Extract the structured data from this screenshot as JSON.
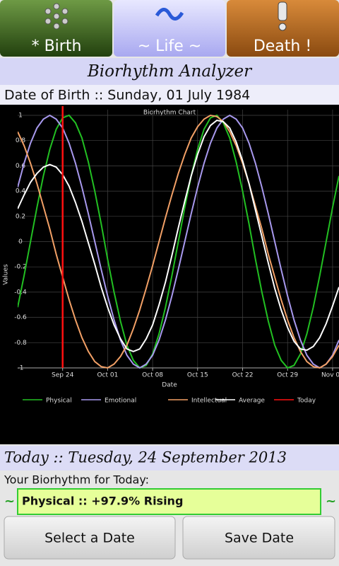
{
  "tabs": [
    "* Birth",
    "~ Life ~",
    "Death !"
  ],
  "header": {
    "title": "Biorhythm Analyzer"
  },
  "date_of_birth": "Date of Birth :: Sunday, 01 July 1984",
  "chart_data": {
    "type": "line",
    "title": "Biorhythm Chart",
    "x_label": "Date",
    "y_label": "Values",
    "x": [
      null,
      null,
      null,
      null,
      null,
      null,
      null,
      "Sep 24",
      null,
      null,
      null,
      null,
      null,
      null,
      "Oct 01",
      null,
      null,
      null,
      null,
      null,
      null,
      "Oct 08",
      null,
      null,
      null,
      null,
      null,
      null,
      "Oct 15",
      null,
      null,
      null,
      null,
      null,
      null,
      "Oct 22",
      null,
      null,
      null,
      null,
      null,
      null,
      "Oct 29",
      null,
      null,
      null,
      null,
      null,
      null,
      "Nov 05",
      null
    ],
    "ylim": [
      -1,
      1
    ],
    "yticks": [
      -1,
      -0.8,
      -0.6,
      -0.4,
      -0.2,
      0,
      0.2,
      0.4,
      0.6,
      0.8,
      1
    ],
    "grid": true,
    "series": [
      {
        "name": "Physical",
        "color": "#22c022",
        "values": [
          -0.52,
          -0.27,
          0,
          0.27,
          0.52,
          0.73,
          0.89,
          0.98,
          1.0,
          0.94,
          0.82,
          0.63,
          0.4,
          0.14,
          -0.14,
          -0.4,
          -0.63,
          -0.82,
          -0.94,
          -1.0,
          -0.98,
          -0.89,
          -0.73,
          -0.52,
          -0.27,
          0,
          0.27,
          0.52,
          0.73,
          0.89,
          0.98,
          1.0,
          0.94,
          0.82,
          0.63,
          0.4,
          0.14,
          -0.14,
          -0.4,
          -0.63,
          -0.82,
          -0.94,
          -1.0,
          -0.98,
          -0.89,
          -0.73,
          -0.52,
          -0.27,
          0,
          0.27,
          0.52
        ]
      },
      {
        "name": "Emotional",
        "color": "#a899ee",
        "values": [
          0.43,
          0.62,
          0.78,
          0.9,
          0.97,
          1,
          0.97,
          0.9,
          0.78,
          0.62,
          0.43,
          0.22,
          0,
          -0.22,
          -0.43,
          -0.62,
          -0.78,
          -0.9,
          -0.97,
          -1,
          -0.97,
          -0.9,
          -0.78,
          -0.62,
          -0.43,
          -0.22,
          0,
          0.22,
          0.43,
          0.62,
          0.78,
          0.9,
          0.97,
          1,
          0.97,
          0.9,
          0.78,
          0.62,
          0.43,
          0.22,
          0,
          -0.22,
          -0.43,
          -0.62,
          -0.78,
          -0.9,
          -0.97,
          -1,
          -0.97,
          -0.9,
          -0.78
        ]
      },
      {
        "name": "Intellectual",
        "color": "#f2a066",
        "values": [
          0.87,
          0.76,
          0.62,
          0.46,
          0.28,
          0.1,
          -0.1,
          -0.28,
          -0.46,
          -0.62,
          -0.76,
          -0.87,
          -0.95,
          -0.99,
          -1.0,
          -0.97,
          -0.91,
          -0.82,
          -0.69,
          -0.54,
          -0.37,
          -0.19,
          0,
          0.19,
          0.37,
          0.54,
          0.69,
          0.82,
          0.91,
          0.97,
          1.0,
          0.99,
          0.95,
          0.87,
          0.76,
          0.62,
          0.46,
          0.28,
          0.1,
          -0.1,
          -0.28,
          -0.46,
          -0.62,
          -0.76,
          -0.87,
          -0.95,
          -0.99,
          -1.0,
          -0.97,
          -0.91,
          -0.82
        ]
      },
      {
        "name": "Average",
        "color": "#ffffff",
        "values": [
          0.26,
          0.37,
          0.47,
          0.54,
          0.59,
          0.61,
          0.59,
          0.53,
          0.44,
          0.31,
          0.16,
          -0.01,
          -0.18,
          -0.36,
          -0.52,
          -0.66,
          -0.77,
          -0.85,
          -0.87,
          -0.85,
          -0.77,
          -0.66,
          -0.5,
          -0.32,
          -0.11,
          0.11,
          0.32,
          0.52,
          0.69,
          0.83,
          0.92,
          0.96,
          0.95,
          0.9,
          0.79,
          0.64,
          0.46,
          0.25,
          0.04,
          -0.17,
          -0.37,
          -0.54,
          -0.68,
          -0.79,
          -0.85,
          -0.86,
          -0.83,
          -0.76,
          -0.65,
          -0.51,
          -0.36
        ]
      }
    ],
    "vlines": [
      {
        "name": "Today",
        "color": "#ff1010",
        "at": "Sep 24"
      }
    ]
  },
  "today": "Today :: Tuesday, 24 September 2013",
  "prompt": "Your Biorhythm for Today:",
  "result": {
    "marker": "~",
    "text": "Physical :: +97.9% Rising"
  },
  "buttons": [
    "Select a Date",
    "Save Date"
  ]
}
